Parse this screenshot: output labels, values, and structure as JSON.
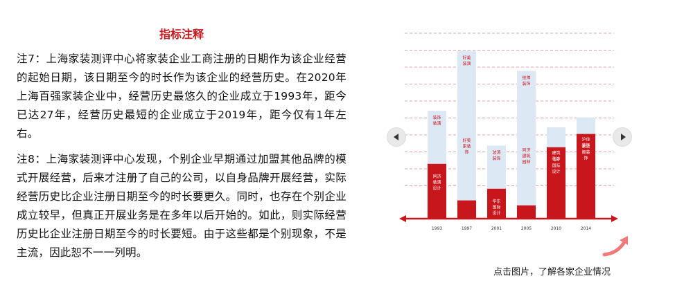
{
  "notes": {
    "title": "指标注释",
    "note7": "注7：上海家装测评中心将家装企业工商注册的日期作为该企业经营的起始日期，该日期至今的时长作为该企业的经营历史。在2020年上海百强家装企业中，经营历史最悠久的企业成立于1993年，距今已达27年，经营历史最短的企业成立于2019年，距今仅有1年左右。",
    "note8": "注8：上海家装测评中心发现，个别企业早期通过加盟其他品牌的模式开展经营，后来才注册了自己的公司，以自身品牌开展经营，实际经营历史比企业注册日期至今的时长要更久。同时，也存在个别企业成立较早，但真正开展业务是在多年以后开始的。如此，则实际经营历史比企业注册日期至今的时长要短。由于这些都是个别现象，不是主流，因此恕不一一列明。"
  },
  "gallery": {
    "prev_icon": "chevron-left-icon",
    "next_icon": "chevron-right-icon",
    "caption": "点击图片，了解各家企业情况",
    "accent": "#c8161d",
    "light_bar": "#dde8f5"
  },
  "chart_data": {
    "type": "bar",
    "categories": [
      "1993",
      "1997",
      "2001",
      "2005",
      "2010",
      "2014"
    ],
    "series": [
      {
        "values": [
          6.5,
          10.1,
          4.4,
          8.9,
          5.5,
          6.1
        ]
      },
      {
        "values": [
          3.3,
          1.1,
          1.8,
          0.8,
          4.3,
          5.1
        ]
      }
    ],
    "bar_labels": [
      {
        "top": "装饰装潢",
        "bottom": "同济装潢设计"
      },
      {
        "top": "好美装潢",
        "middle": "好美家装饰",
        "bottom": ""
      },
      {
        "top": "波涛装饰",
        "bottom": "华东国际设计"
      },
      {
        "top": "统帅装饰",
        "middle": "同济建筑园林",
        "bottom": ""
      },
      {
        "top": "",
        "middle": "建筑装饰",
        "bottom": "16国际设计"
      },
      {
        "top": "",
        "middle": "沪佳装饰",
        "bottom": "紫云阁装饰"
      }
    ]
  }
}
